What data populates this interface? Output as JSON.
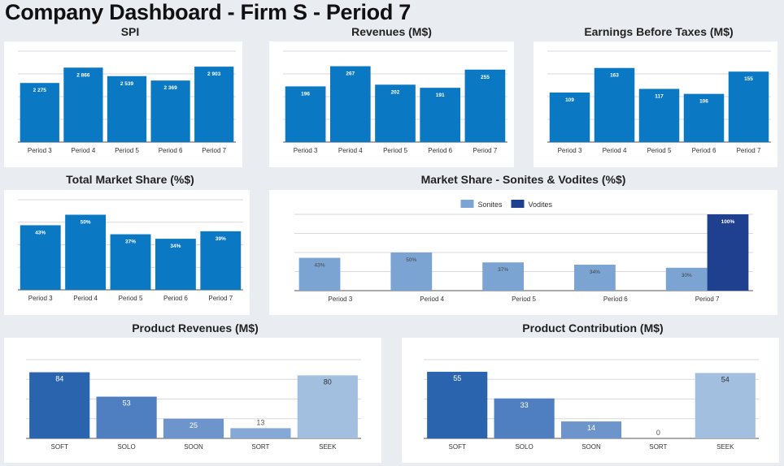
{
  "page_title": "Company Dashboard - Firm S - Period 7",
  "colors": {
    "primary_bar": "#0a78c2",
    "sonites": "#7ba4d2",
    "vodites": "#1f3f8f",
    "soft": "#2a64ae",
    "solo": "#4f7fc0",
    "soon": "#6e95cb",
    "sort": "#85a8d6",
    "seek": "#a3bfdf",
    "grid": "#d9d9d9",
    "axis": "#555555"
  },
  "chart_data": [
    {
      "id": "spi",
      "type": "bar",
      "title": "SPI",
      "categories": [
        "Period 3",
        "Period 4",
        "Period 5",
        "Period 6",
        "Period 7"
      ],
      "values": [
        2275,
        2866,
        2539,
        2369,
        2903
      ],
      "labels": [
        "2 275",
        "2 866",
        "2 539",
        "2 369",
        "2 903"
      ],
      "ylim": [
        0,
        3500
      ],
      "grid": true
    },
    {
      "id": "revenues",
      "type": "bar",
      "title": "Revenues (M$)",
      "categories": [
        "Period 3",
        "Period 4",
        "Period 5",
        "Period 6",
        "Period 7"
      ],
      "values": [
        196,
        267,
        202,
        191,
        255
      ],
      "labels": [
        "196",
        "267",
        "202",
        "191",
        "255"
      ],
      "ylim": [
        0,
        320
      ],
      "grid": true
    },
    {
      "id": "ebt",
      "type": "bar",
      "title": "Earnings Before Taxes (M$)",
      "categories": [
        "Period 3",
        "Period 4",
        "Period 5",
        "Period 6",
        "Period 7"
      ],
      "values": [
        109,
        163,
        117,
        106,
        155
      ],
      "labels": [
        "109",
        "163",
        "117",
        "106",
        "155"
      ],
      "ylim": [
        0,
        200
      ],
      "grid": true
    },
    {
      "id": "total-market-share",
      "type": "bar",
      "title": "Total Market Share (%$)",
      "categories": [
        "Period 3",
        "Period 4",
        "Period 5",
        "Period 6",
        "Period 7"
      ],
      "values": [
        43,
        50,
        37,
        34,
        39
      ],
      "labels": [
        "43%",
        "50%",
        "37%",
        "34%",
        "39%"
      ],
      "ylim": [
        0,
        60
      ],
      "grid": true
    },
    {
      "id": "market-share-sonites-vodites",
      "type": "bar",
      "title": "Market Share - Sonites & Vodites (%$)",
      "categories": [
        "Period 3",
        "Period 4",
        "Period 5",
        "Period 6",
        "Period 7"
      ],
      "series": [
        {
          "name": "Sonites",
          "values": [
            43,
            50,
            37,
            34,
            30
          ],
          "labels": [
            "43%",
            "50%",
            "37%",
            "34%",
            "30%"
          ]
        },
        {
          "name": "Vodites",
          "values": [
            null,
            null,
            null,
            null,
            100
          ],
          "labels": [
            "",
            "",
            "",
            "",
            "100%"
          ]
        }
      ],
      "ylim": [
        0,
        100
      ],
      "grid": true,
      "legend": "top-center"
    },
    {
      "id": "product-revenues",
      "type": "bar",
      "title": "Product Revenues (M$)",
      "categories": [
        "SOFT",
        "SOLO",
        "SOON",
        "SORT",
        "SEEK"
      ],
      "values": [
        84,
        53,
        25,
        13,
        80
      ],
      "labels": [
        "84",
        "53",
        "25",
        "13",
        "80"
      ],
      "ylim": [
        0,
        100
      ],
      "grid": true
    },
    {
      "id": "product-contribution",
      "type": "bar",
      "title": "Product Contribution (M$)",
      "categories": [
        "SOFT",
        "SOLO",
        "SOON",
        "SORT",
        "SEEK"
      ],
      "values": [
        55,
        33,
        14,
        0,
        54
      ],
      "labels": [
        "55",
        "33",
        "14",
        "0",
        "54"
      ],
      "ylim": [
        0,
        65
      ],
      "grid": true
    }
  ]
}
